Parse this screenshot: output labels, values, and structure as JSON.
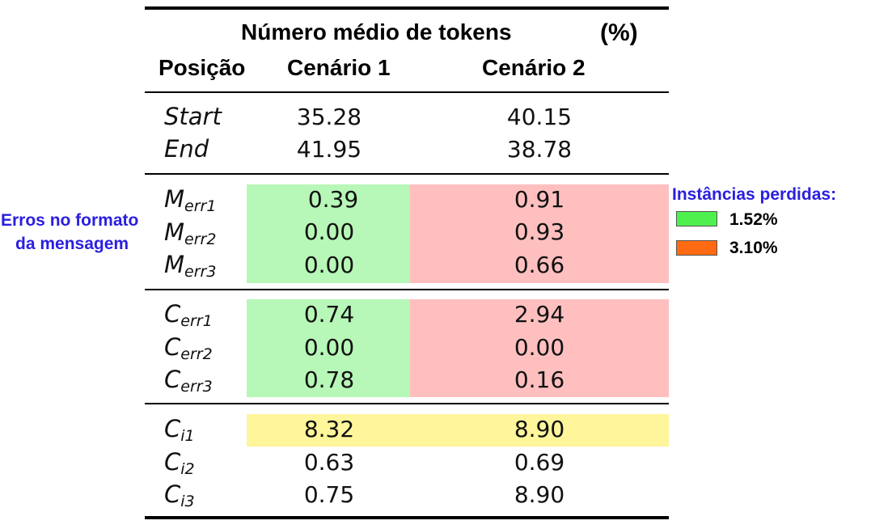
{
  "header": {
    "title": "Número médio de tokens",
    "unit": "(%)",
    "col_position": "Posição",
    "col_scenario1": "Cenário 1",
    "col_scenario2": "Cenário 2"
  },
  "rows": {
    "start": {
      "label": "Start",
      "c1": "35.28",
      "c2": "40.15"
    },
    "end": {
      "label": "End",
      "c1": "41.95",
      "c2": "38.78"
    },
    "merr1": {
      "label_main": "M",
      "label_sub": "err1",
      "c1": "0.39",
      "c2": "0.91"
    },
    "merr2": {
      "label_main": "M",
      "label_sub": "err2",
      "c1": "0.00",
      "c2": "0.93"
    },
    "merr3": {
      "label_main": "M",
      "label_sub": "err3",
      "c1": "0.00",
      "c2": "0.66"
    },
    "cerr1": {
      "label_main": "C",
      "label_sub": "err1",
      "c1": "0.74",
      "c2": "2.94"
    },
    "cerr2": {
      "label_main": "C",
      "label_sub": "err2",
      "c1": "0.00",
      "c2": "0.00"
    },
    "cerr3": {
      "label_main": "C",
      "label_sub": "err3",
      "c1": "0.78",
      "c2": "0.16"
    },
    "ci1": {
      "label_main": "C",
      "label_sub": "i1",
      "c1": "8.32",
      "c2": "8.90"
    },
    "ci2": {
      "label_main": "C",
      "label_sub": "i2",
      "c1": "0.63",
      "c2": "0.69"
    },
    "ci3": {
      "label_main": "C",
      "label_sub": "i3",
      "c1": "0.75",
      "c2": "8.90"
    }
  },
  "annotation": {
    "line1": "Erros no formato",
    "line2": "da mensagem"
  },
  "legend": {
    "title": "Instâncias perdidas:",
    "items": [
      {
        "label": "1.52%",
        "color": "#4ef04e"
      },
      {
        "label": "3.10%",
        "color": "#ff6a13"
      }
    ]
  },
  "colors": {
    "highlight_green": "#b7f7b7",
    "highlight_red": "#ffbfbf",
    "highlight_yellow": "#fff59a",
    "annotation_blue": "#2a1ee0"
  }
}
